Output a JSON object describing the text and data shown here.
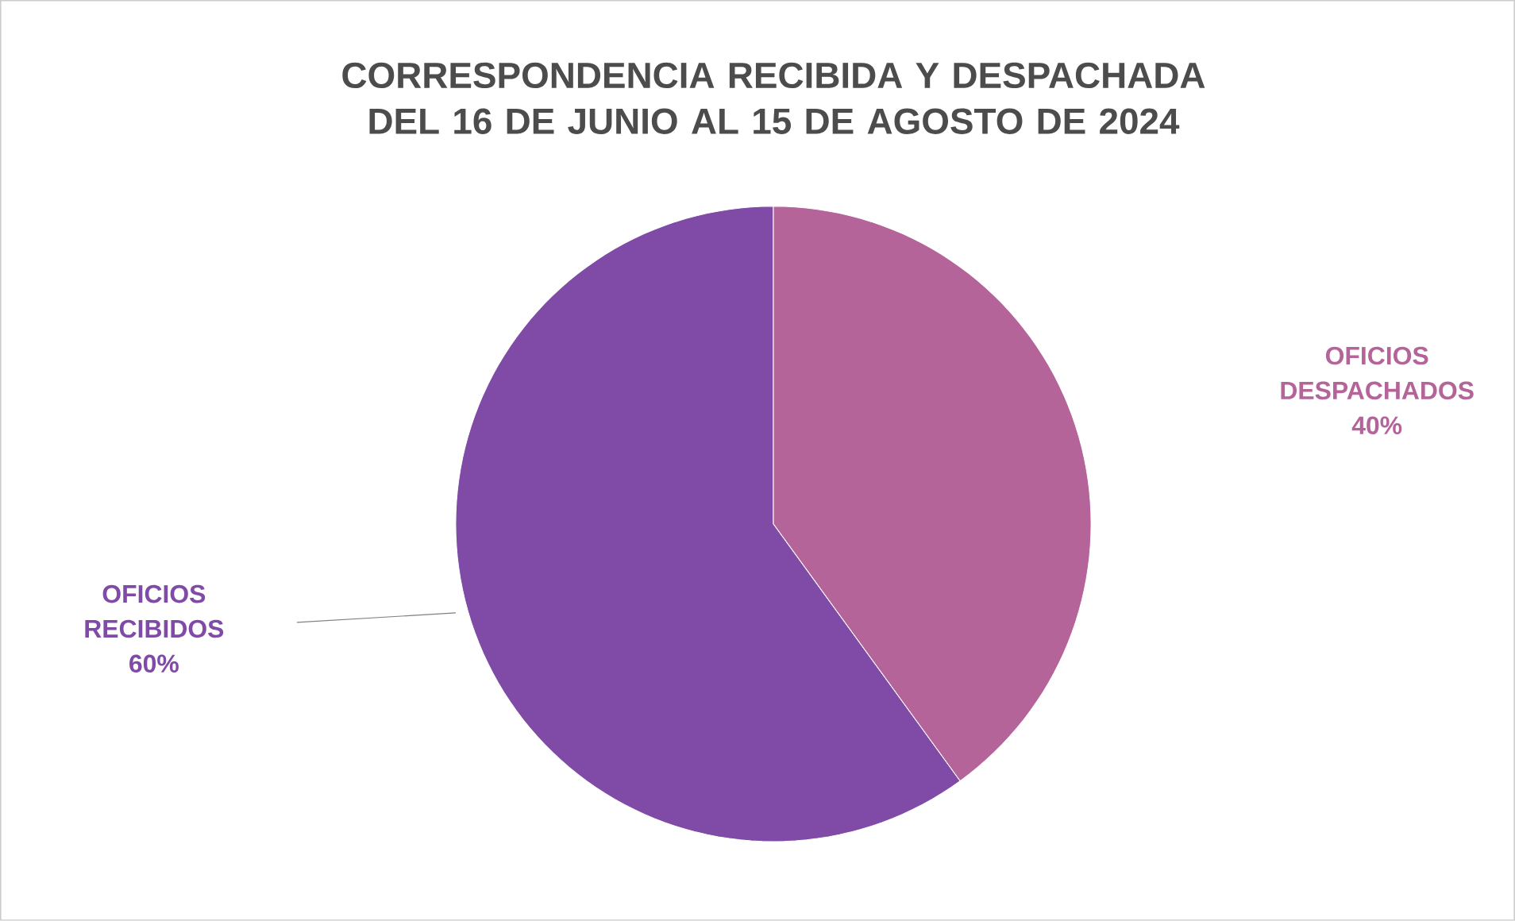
{
  "chart_data": {
    "type": "pie",
    "title": "CORRESPONDENCIA RECIBIDA Y DESPACHADA DEL 16 DE JUNIO AL 15 DE AGOSTO DE 2024",
    "categories": [
      "OFICIOS RECIBIDOS",
      "OFICIOS DESPACHADOS"
    ],
    "values": [
      60,
      40
    ],
    "value_labels": [
      "60%",
      "40%"
    ],
    "colors": [
      "#7f4ba6",
      "#b5649a"
    ]
  }
}
